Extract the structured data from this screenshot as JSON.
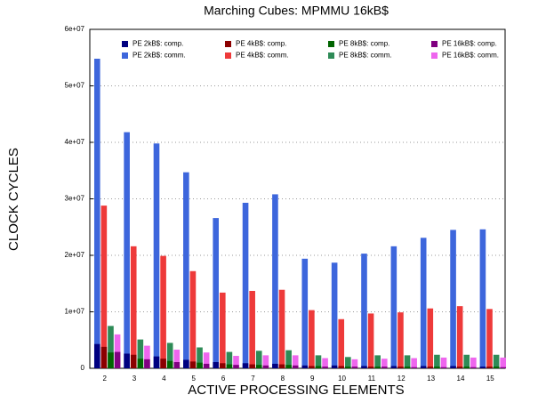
{
  "chart_data": {
    "type": "bar",
    "title": "Marching Cubes: MPMMU 16kB$",
    "x_label": "ACTIVE PROCESSING ELEMENTS",
    "y_label": "CLOCK CYCLES",
    "categories": [
      "2",
      "3",
      "4",
      "5",
      "6",
      "7",
      "8",
      "9",
      "10",
      "11",
      "12",
      "13",
      "14",
      "15"
    ],
    "ylim": [
      0,
      60000000
    ],
    "yticks": [
      0,
      {
        "value": 10000000,
        "label": "1e+07"
      },
      {
        "value": 20000000,
        "label": "2e+07"
      },
      {
        "value": 30000000,
        "label": "3e+07"
      },
      {
        "value": 40000000,
        "label": "4e+07"
      },
      {
        "value": 50000000,
        "label": "5e+07"
      },
      {
        "value": 60000000,
        "label": "6e+07"
      }
    ],
    "grid": true,
    "series": [
      {
        "name": "PE 2kB$: comp.",
        "color": "#000080",
        "values": [
          4300000,
          2600000,
          2100000,
          1500000,
          1100000,
          900000,
          800000,
          500000,
          500000,
          400000,
          400000,
          400000,
          400000,
          300000
        ]
      },
      {
        "name": "PE 2kB$: comm.",
        "color": "#3d66dc",
        "values": [
          54800000,
          41800000,
          39800000,
          34700000,
          26600000,
          29300000,
          30800000,
          19400000,
          18700000,
          20300000,
          21600000,
          23100000,
          24500000,
          24600000
        ]
      },
      {
        "name": "PE 4kB$: comp.",
        "color": "#8b0000",
        "values": [
          3800000,
          2400000,
          1700000,
          1200000,
          900000,
          700000,
          700000,
          400000,
          400000,
          300000,
          300000,
          300000,
          300000,
          300000
        ]
      },
      {
        "name": "PE 4kB$: comm.",
        "color": "#ee3a3a",
        "values": [
          28800000,
          21600000,
          19900000,
          17200000,
          13400000,
          13700000,
          13900000,
          10300000,
          8700000,
          9700000,
          9900000,
          10600000,
          11000000,
          10500000
        ]
      },
      {
        "name": "PE 8kB$: comp.",
        "color": "#006400",
        "values": [
          2800000,
          1700000,
          1300000,
          1000000,
          700000,
          600000,
          600000,
          400000,
          300000,
          300000,
          300000,
          300000,
          300000,
          300000
        ]
      },
      {
        "name": "PE 8kB$: comm.",
        "color": "#2e8b57",
        "values": [
          7500000,
          5100000,
          4500000,
          3700000,
          2900000,
          3100000,
          3200000,
          2300000,
          2000000,
          2300000,
          2300000,
          2400000,
          2400000,
          2400000
        ]
      },
      {
        "name": "PE 16kB$: comp.",
        "color": "#800080",
        "values": [
          2900000,
          1600000,
          1100000,
          800000,
          600000,
          500000,
          500000,
          300000,
          300000,
          300000,
          200000,
          200000,
          200000,
          200000
        ]
      },
      {
        "name": "PE 16kB$: comm.",
        "color": "#ee66ee",
        "values": [
          6000000,
          4000000,
          3300000,
          2800000,
          2200000,
          2300000,
          2300000,
          1800000,
          1600000,
          1700000,
          1800000,
          1900000,
          1900000,
          1900000
        ]
      }
    ]
  }
}
